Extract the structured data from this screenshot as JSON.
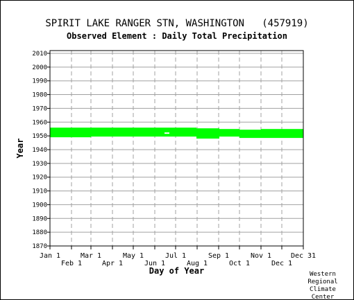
{
  "chart_data": {
    "type": "heatmap",
    "title": "SPIRIT LAKE RANGER STN, WASHINGTON   (457919)",
    "subtitle": "Observed Element : Daily Total Precipitation",
    "xlabel": "Day of Year",
    "ylabel": "Year",
    "xlim": [
      1,
      366
    ],
    "ylim": [
      1870,
      2012
    ],
    "grid": true,
    "x_ticks_top_row": [
      "Jan 1",
      "Mar 1",
      "May 1",
      "Jul 1",
      "Sep 1",
      "Nov 1",
      "Dec 31"
    ],
    "x_ticks_bottom_row": [
      "Feb 1",
      "Apr 1",
      "Jun 1",
      "Aug 1",
      "Oct 1",
      "Dec 1"
    ],
    "y_ticks": [
      1870,
      1880,
      1890,
      1900,
      1910,
      1920,
      1930,
      1940,
      1950,
      1960,
      1970,
      1980,
      1990,
      2000,
      2010
    ],
    "series": [
      {
        "name": "",
        "color": "#00ff00",
        "segments": [
          {
            "day_start": 1,
            "day_end": 60,
            "year_start": 1949,
            "year_end": 1956
          },
          {
            "day_start": 60,
            "day_end": 212,
            "year_start": 1949.5,
            "year_end": 1956
          },
          {
            "day_start": 212,
            "day_end": 245,
            "year_start": 1948,
            "year_end": 1955.5
          },
          {
            "day_start": 245,
            "day_end": 274,
            "year_start": 1949.5,
            "year_end": 1955
          },
          {
            "day_start": 274,
            "day_end": 305,
            "year_start": 1948.5,
            "year_end": 1954.5
          },
          {
            "day_start": 305,
            "day_end": 366,
            "year_start": 1948.5,
            "year_end": 1955
          }
        ]
      }
    ],
    "missing_marks": [
      {
        "day_start": 166,
        "day_end": 173,
        "year": 1952
      },
      {
        "day_start": 212,
        "day_end": 245,
        "year": 1947.5
      }
    ]
  },
  "credit": [
    "Western",
    "Regional",
    "Climate",
    "Center"
  ]
}
